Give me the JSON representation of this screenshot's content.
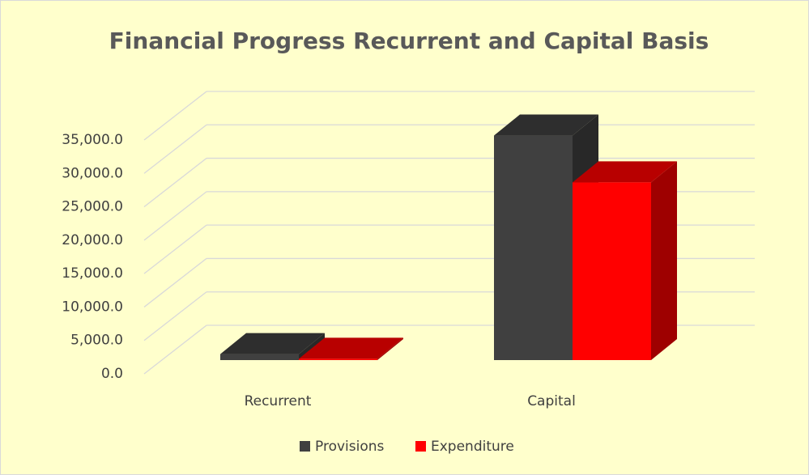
{
  "chart_data": {
    "type": "bar3d",
    "title": "Financial Progress Recurrent and Capital Basis",
    "categories": [
      "Recurrent",
      "Capital"
    ],
    "series": [
      {
        "name": "Provisions",
        "color": "#404040",
        "values": [
          900,
          33600
        ]
      },
      {
        "name": "Expenditure",
        "color": "#ff0000",
        "values": [
          200,
          26600
        ]
      }
    ],
    "ylim": [
      0,
      35000
    ],
    "yticks": [
      {
        "value": 0,
        "label": "0.0"
      },
      {
        "value": 5000,
        "label": "5,000.0"
      },
      {
        "value": 10000,
        "label": "10,000.0"
      },
      {
        "value": 15000,
        "label": "15,000.0"
      },
      {
        "value": 20000,
        "label": "20,000.0"
      },
      {
        "value": 25000,
        "label": "25,000.0"
      },
      {
        "value": 30000,
        "label": "30,000.0"
      },
      {
        "value": 35000,
        "label": "35,000.0"
      }
    ],
    "grid": true,
    "legend": "bottom"
  }
}
